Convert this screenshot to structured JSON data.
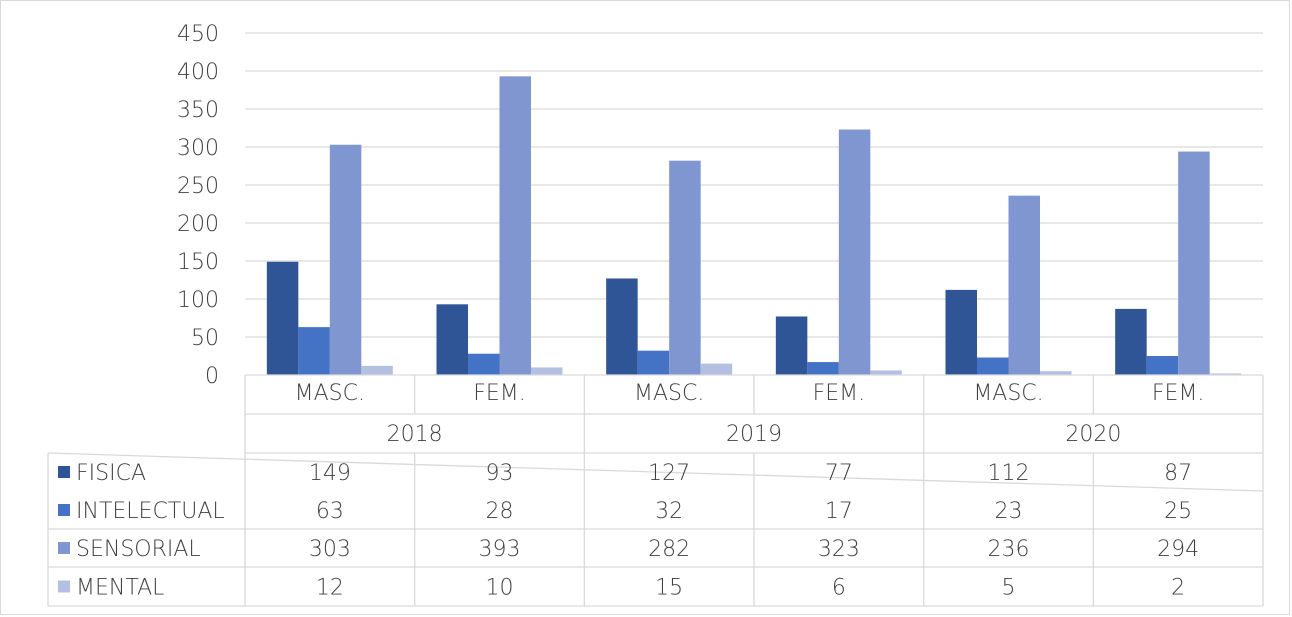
{
  "chart_data": {
    "type": "bar",
    "title": "",
    "xlabel": "",
    "ylabel": "",
    "ylim": [
      0,
      450
    ],
    "yticks": [
      0,
      50,
      100,
      150,
      200,
      250,
      300,
      350,
      400,
      450
    ],
    "grid": true,
    "legend": "data-table",
    "groups": [
      {
        "year": "2018",
        "categories": [
          "MASC.",
          "FEM."
        ]
      },
      {
        "year": "2019",
        "categories": [
          "MASC.",
          "FEM."
        ]
      },
      {
        "year": "2020",
        "categories": [
          "MASC.",
          "FEM."
        ]
      }
    ],
    "categories": [
      "MASC.",
      "FEM.",
      "MASC.",
      "FEM.",
      "MASC.",
      "FEM."
    ],
    "series": [
      {
        "name": "FISICA",
        "color": "#2f5597",
        "values": [
          149,
          93,
          127,
          77,
          112,
          87
        ]
      },
      {
        "name": "INTELECTUAL",
        "color": "#4472c4",
        "values": [
          63,
          28,
          32,
          17,
          23,
          25
        ]
      },
      {
        "name": "SENSORIAL",
        "color": "#7f96d0",
        "values": [
          303,
          393,
          282,
          323,
          236,
          294
        ]
      },
      {
        "name": "MENTAL",
        "color": "#b4c0e2",
        "values": [
          12,
          10,
          15,
          6,
          5,
          2
        ]
      }
    ]
  }
}
